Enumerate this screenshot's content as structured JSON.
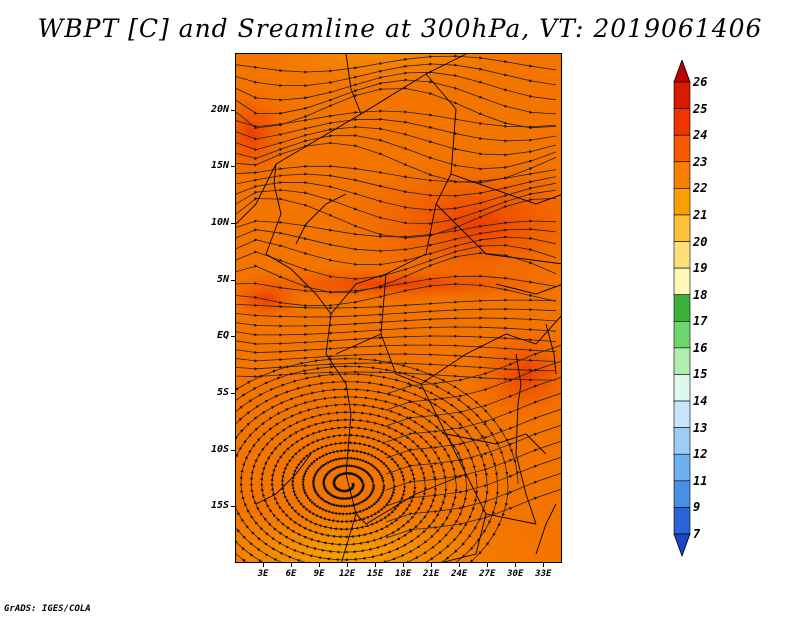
{
  "title": "WBPT [C] and Sreamline at 300hPa, VT: 2019061406",
  "footer": "GrADS: IGES/COLA",
  "map": {
    "lon_range": [
      0,
      35
    ],
    "lat_range": [
      -20,
      25
    ],
    "lat_ticks": [
      "20N",
      "15N",
      "10N",
      "5N",
      "EQ",
      "5S",
      "10S",
      "15S"
    ],
    "lat_values": [
      20,
      15,
      10,
      5,
      0,
      -5,
      -10,
      -15
    ],
    "lon_ticks": [
      "3E",
      "6E",
      "9E",
      "12E",
      "15E",
      "18E",
      "21E",
      "24E",
      "27E",
      "30E",
      "33E"
    ],
    "lon_values": [
      3,
      6,
      9,
      12,
      15,
      18,
      21,
      24,
      27,
      30,
      33
    ]
  },
  "colorbar": {
    "labels": [
      "26",
      "25",
      "24",
      "23",
      "22",
      "21",
      "20",
      "19",
      "18",
      "17",
      "16",
      "15",
      "14",
      "13",
      "12",
      "11",
      "9",
      "7"
    ],
    "colors": [
      "#c00000",
      "#d81a00",
      "#ee3500",
      "#f55a00",
      "#f77e00",
      "#f9a000",
      "#fbc23a",
      "#fde07c",
      "#fff7b8",
      "#3bb03b",
      "#6ed46e",
      "#b3ecaf",
      "#dff7ec",
      "#c7e6fb",
      "#9dcdf7",
      "#6fb0f2",
      "#4a8ee6",
      "#2a64d8",
      "#1e45c8"
    ]
  }
}
